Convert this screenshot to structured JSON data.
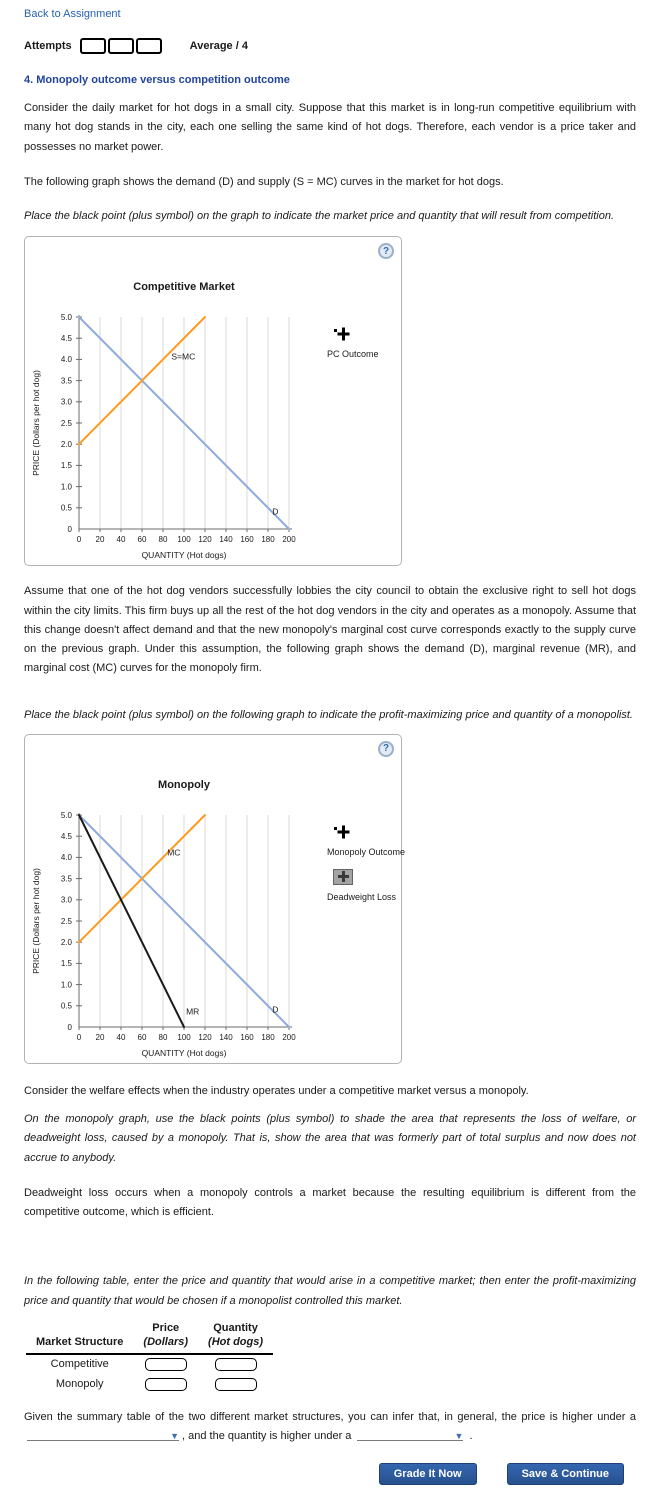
{
  "page": {
    "back_link": "Back to Assignment",
    "attempts_label": "Attempts",
    "average_label": "Average / 4",
    "section_title": "4. Monopoly outcome versus competition outcome",
    "p1": "Consider the daily market for hot dogs in a small city. Suppose that this market is in long-run competitive equilibrium with many hot dog stands in the city, each one selling the same kind of hot dogs. Therefore, each vendor is a price taker and possesses no market power.",
    "p2": "The following graph shows the demand (D) and supply (S = MC) curves in the market for hot dogs.",
    "instruction1": "Place the black point (plus symbol) on the graph to indicate the market price and quantity that will result from competition.",
    "p3": "Assume that one of the hot dog vendors successfully lobbies the city council to obtain the exclusive right to sell hot dogs within the city limits. This firm buys up all the rest of the hot dog vendors in the city and operates as a monopoly. Assume that this change doesn't affect demand and that the new monopoly's marginal cost curve corresponds exactly to the supply curve on the previous graph. Under this assumption, the following graph shows the demand (D), marginal revenue (MR), and marginal cost (MC) curves for the monopoly firm.",
    "instruction2": "Place the black point (plus symbol) on the following graph to indicate the profit-maximizing price and quantity of a monopolist.",
    "p4": "Consider the welfare effects when the industry operates under a competitive market versus a monopoly.",
    "instruction3": "On the monopoly graph, use the black points (plus symbol) to shade the area that represents the loss of welfare, or deadweight loss, caused by a monopoly. That is, show the area that was formerly part of total surplus and now does not accrue to anybody.",
    "p5": "Deadweight loss occurs when a monopoly controls a market because the resulting equilibrium is different from the competitive outcome, which is efficient.",
    "instruction4": "In the following table, enter the price and quantity that would arise in a competitive market; then enter the profit-maximizing price and quantity that would be chosen if a monopolist controlled this market.",
    "p6_part1": "Given the summary table of the two different market structures, you can infer that, in general, the price is higher under a",
    "p6_comma": ",",
    "p6_part2": "and the quantity is higher under a",
    "p6_period": "."
  },
  "panels": [
    {
      "help_icon": "?",
      "tools": [
        {
          "icon": "plus-marker-icon",
          "label": "PC Outcome"
        }
      ]
    },
    {
      "help_icon": "?",
      "tools": [
        {
          "icon": "plus-marker-icon",
          "label": "Monopoly Outcome"
        },
        {
          "icon": "shade-tool-icon",
          "label": "Deadweight Loss"
        }
      ]
    }
  ],
  "table": {
    "headers": {
      "col1": "Market Structure",
      "col2_line1": "Price",
      "col2_line2": "(Dollars)",
      "col3_line1": "Quantity",
      "col3_line2": "(Hot dogs)"
    },
    "rows": [
      {
        "label": "Competitive",
        "price_value": "",
        "quantity_value": ""
      },
      {
        "label": "Monopoly",
        "price_value": "",
        "quantity_value": ""
      }
    ]
  },
  "buttons": {
    "grade": "Grade It Now",
    "save": "Save & Continue"
  },
  "colors": {
    "link_blue": "#2563ae",
    "heading_blue": "#21449c",
    "demand_blue": "#8faadc",
    "supply_orange": "#ff9a1f",
    "mr_black": "#1a1a1a",
    "button_blue": "#2b5da9"
  },
  "chart_data": [
    {
      "type": "line",
      "title": "Competitive Market",
      "xlabel": "QUANTITY (Hot dogs)",
      "ylabel": "PRICE (Dollars per hot dog)",
      "xlim": [
        0,
        200
      ],
      "ylim": [
        0,
        5
      ],
      "xticks": [
        "0",
        "20",
        "40",
        "60",
        "80",
        "100",
        "120",
        "140",
        "160",
        "180",
        "200"
      ],
      "yticks": [
        "0",
        "0.5",
        "1.0",
        "1.5",
        "2.0",
        "2.5",
        "3.0",
        "3.5",
        "4.0",
        "4.5",
        "5.0"
      ],
      "grid": "vertical",
      "series": [
        {
          "name": "D",
          "color": "#8faadc",
          "width": 2,
          "points": [
            [
              0,
              5
            ],
            [
              200,
              0
            ]
          ],
          "label_at": [
            184,
            0.34
          ]
        },
        {
          "name": "S=MC",
          "color": "#ff9a1f",
          "width": 2,
          "points": [
            [
              0,
              2
            ],
            [
              120,
              5
            ]
          ],
          "label_at": [
            88,
            4.0
          ]
        }
      ]
    },
    {
      "type": "line",
      "title": "Monopoly",
      "xlabel": "QUANTITY (Hot dogs)",
      "ylabel": "PRICE (Dollars per hot dog)",
      "xlim": [
        0,
        200
      ],
      "ylim": [
        0,
        5
      ],
      "xticks": [
        "0",
        "20",
        "40",
        "60",
        "80",
        "100",
        "120",
        "140",
        "160",
        "180",
        "200"
      ],
      "yticks": [
        "0",
        "0.5",
        "1.0",
        "1.5",
        "2.0",
        "2.5",
        "3.0",
        "3.5",
        "4.0",
        "4.5",
        "5.0"
      ],
      "grid": "vertical",
      "series": [
        {
          "name": "D",
          "color": "#8faadc",
          "width": 2,
          "points": [
            [
              0,
              5
            ],
            [
              200,
              0
            ]
          ],
          "label_at": [
            184,
            0.34
          ]
        },
        {
          "name": "MC",
          "color": "#ff9a1f",
          "width": 2,
          "points": [
            [
              0,
              2
            ],
            [
              120,
              5
            ]
          ],
          "label_at": [
            84,
            4.05
          ]
        },
        {
          "name": "MR",
          "color": "#1a1a1a",
          "width": 2,
          "points": [
            [
              0,
              5
            ],
            [
              100,
              0
            ]
          ],
          "label_at": [
            102,
            0.3
          ]
        }
      ]
    }
  ]
}
